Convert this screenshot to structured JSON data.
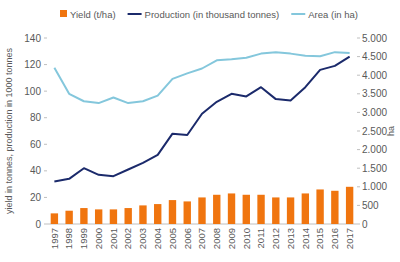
{
  "chart_data": {
    "type": "bar",
    "categories": [
      "1997",
      "1998",
      "1999",
      "2000",
      "2001",
      "2002",
      "2003",
      "2004",
      "2005",
      "2006",
      "2007",
      "2008",
      "2009",
      "2010",
      "2011",
      "2012",
      "2013",
      "2014",
      "2015",
      "2016",
      "2017"
    ],
    "series": [
      {
        "name": "Yield (t/ha)",
        "type": "bar",
        "color": "#f0750f",
        "values": [
          8,
          10,
          12,
          11,
          11,
          12,
          14,
          15,
          18,
          17,
          20,
          22,
          23,
          22,
          22,
          20,
          20,
          23,
          26,
          25,
          28
        ]
      },
      {
        "name": "Production (in thousand tonnes)",
        "type": "line",
        "color": "#1b2a6b",
        "values": [
          32,
          34,
          42,
          37,
          36,
          41,
          46,
          52,
          68,
          67,
          83,
          92,
          98,
          96,
          103,
          94,
          93,
          103,
          116,
          119,
          126
        ]
      },
      {
        "name": "Area (in ha)",
        "type": "line",
        "color": "#84c7dc",
        "axis": "y2",
        "values": [
          4200,
          3500,
          3300,
          3250,
          3400,
          3250,
          3300,
          3450,
          3900,
          4050,
          4180,
          4400,
          4430,
          4470,
          4580,
          4620,
          4580,
          4520,
          4510,
          4620,
          4600
        ]
      }
    ],
    "ylabel": "yield in tonnes, production in 1000 tonnes",
    "y2label": "ha",
    "ylim": [
      0,
      140
    ],
    "yticks": [
      0,
      20,
      40,
      60,
      80,
      100,
      120,
      140
    ],
    "y2lim": [
      0,
      5000
    ],
    "y2ticks": [
      0,
      500,
      {
        "value": 1000,
        "label": "1.000"
      },
      {
        "value": 1500,
        "label": "1.500"
      },
      {
        "value": 2000,
        "label": "2.000"
      },
      {
        "value": 2500,
        "label": "2.500"
      },
      {
        "value": 3000,
        "label": "3.000"
      },
      {
        "value": 3500,
        "label": "3.500"
      },
      {
        "value": 4000,
        "label": "4.000"
      },
      {
        "value": 4500,
        "label": "4.500"
      },
      {
        "value": 5000,
        "label": "5.000"
      }
    ],
    "grid": false,
    "legend": "top"
  }
}
